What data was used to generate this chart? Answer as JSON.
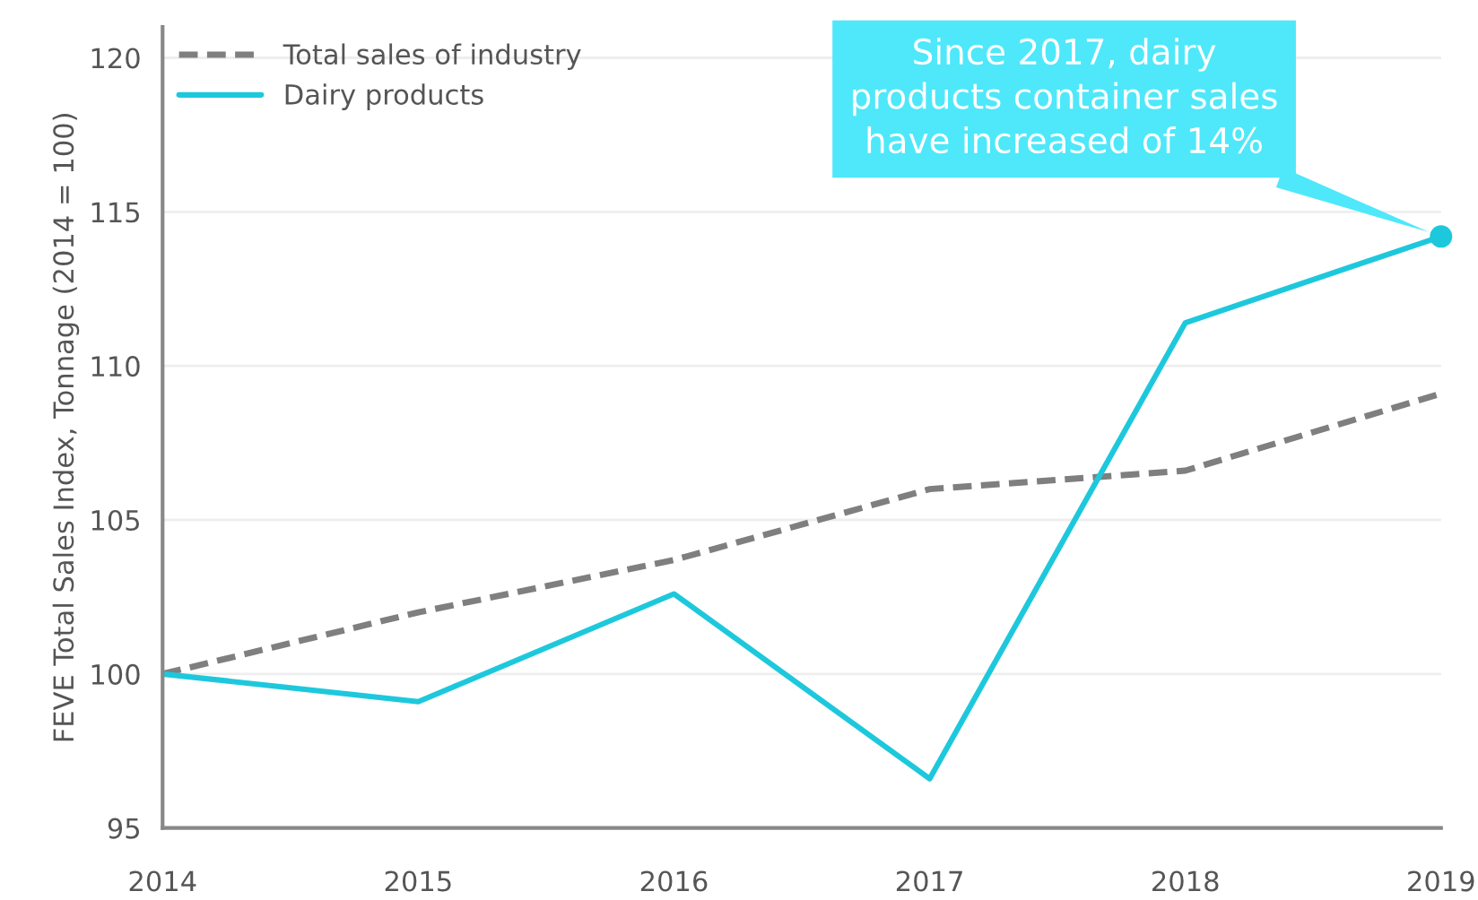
{
  "chart_data": {
    "type": "line",
    "ylabel": "FEVE Total Sales Index, Tonnage (2014 = 100)",
    "categories": [
      "2014",
      "2015",
      "2016",
      "2017",
      "2018",
      "2019"
    ],
    "series": [
      {
        "name": "Total sales of industry",
        "color": "#7f7f80",
        "line_style": "dashed",
        "values": [
          100,
          102.0,
          103.7,
          106.0,
          106.6,
          109.1
        ]
      },
      {
        "name": "Dairy products",
        "color": "#1ec8dc",
        "line_style": "solid",
        "values": [
          100,
          99.1,
          102.6,
          96.6,
          111.4,
          114.2
        ]
      }
    ],
    "ylim": [
      95,
      121
    ],
    "yticks": [
      95,
      100,
      105,
      110,
      115,
      120
    ],
    "grid": "y",
    "legend": "top left",
    "annotations": [
      {
        "text": "Since 2017, dairy\nproducts container sales\nhave increased of 14%",
        "x": "2019",
        "y": 114.2
      }
    ]
  }
}
